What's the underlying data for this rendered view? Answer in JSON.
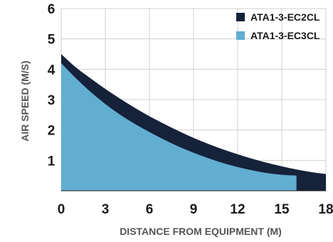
{
  "chart_data": {
    "type": "area",
    "xlabel": "DISTANCE FROM EQUIPMENT (M)",
    "ylabel": "AIR SPEED (M/S)",
    "xlim": [
      0,
      18
    ],
    "ylim": [
      0,
      6
    ],
    "xticks": [
      "0",
      "3",
      "6",
      "9",
      "12",
      "15",
      "18"
    ],
    "yticks": [
      "1",
      "2",
      "3",
      "4",
      "5",
      "6"
    ],
    "grid": true,
    "legend": "top-right",
    "x": [
      0,
      1,
      2,
      3,
      4,
      5,
      6,
      7,
      8,
      9,
      10,
      11,
      12,
      13,
      14,
      15,
      16,
      17,
      18
    ],
    "series": [
      {
        "name": "ATA1-3-EC2CL",
        "color": "#16213a",
        "values": [
          4.5,
          4.05,
          3.7,
          3.35,
          3.03,
          2.73,
          2.45,
          2.2,
          1.96,
          1.74,
          1.54,
          1.36,
          1.2,
          1.05,
          0.92,
          0.8,
          0.7,
          0.61,
          0.55
        ]
      },
      {
        "name": "ATA1-3-EC3CL",
        "color": "#61aed0",
        "values": [
          4.2,
          3.7,
          3.25,
          2.85,
          2.5,
          2.2,
          1.93,
          1.68,
          1.45,
          1.25,
          1.07,
          0.91,
          0.78,
          0.67,
          0.58,
          0.52,
          0.5,
          null,
          null
        ]
      }
    ]
  }
}
